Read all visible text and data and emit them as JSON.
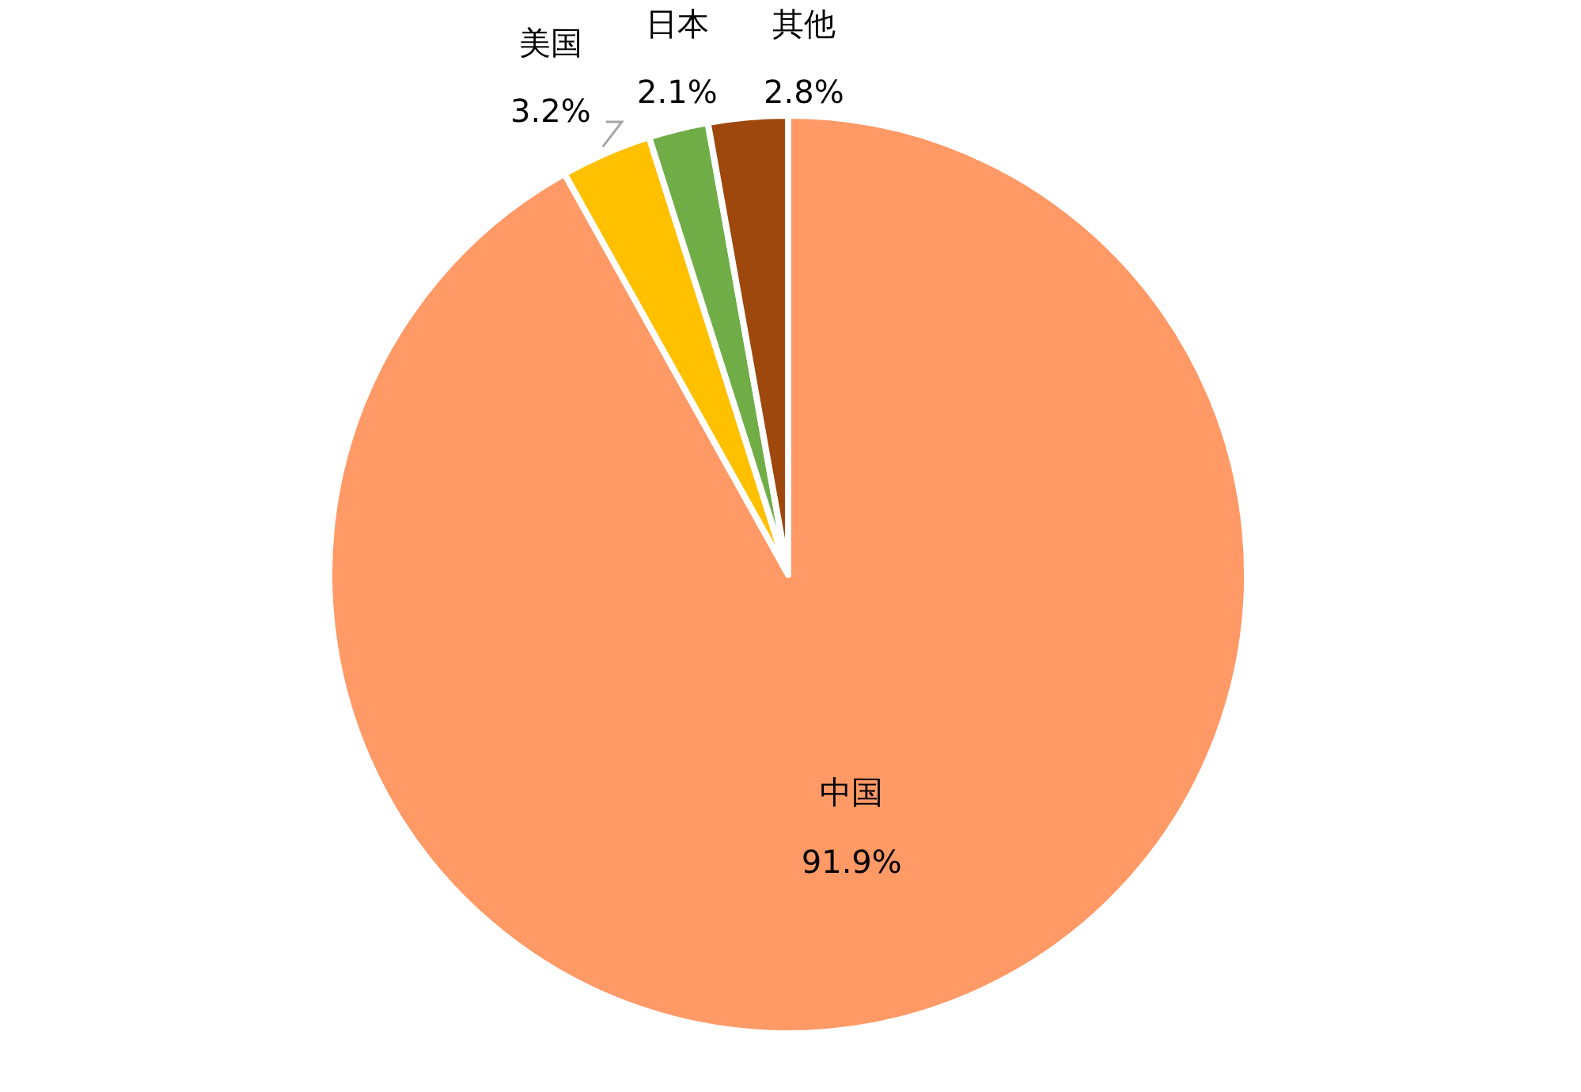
{
  "chart_data": {
    "type": "pie",
    "categories": [
      "中国",
      "美国",
      "日本",
      "其他"
    ],
    "values": [
      91.9,
      3.2,
      2.1,
      2.8
    ],
    "colors": [
      "#ff9966",
      "#ffc000",
      "#70ad47",
      "#9e480e"
    ],
    "value_labels": [
      "91.9%",
      "3.2%",
      "2.1%",
      "2.8%"
    ]
  }
}
